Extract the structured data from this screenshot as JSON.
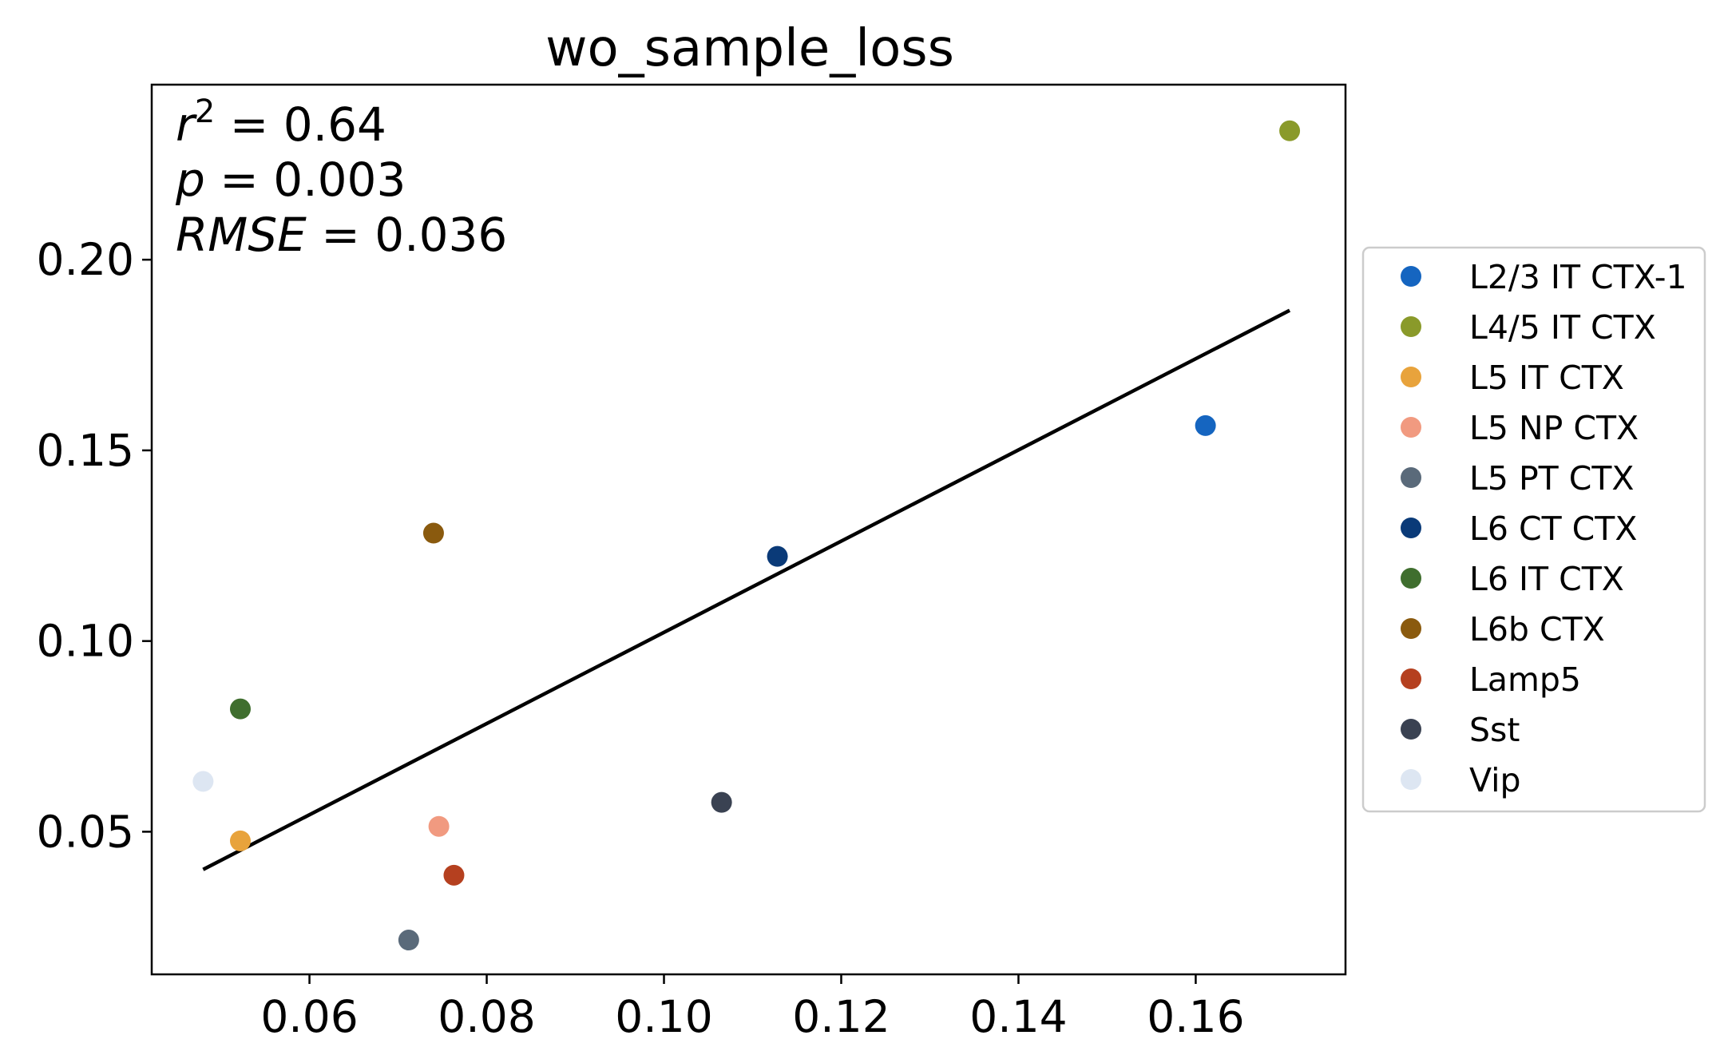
{
  "chart_data": {
    "type": "scatter",
    "title": "wo_sample_loss",
    "xlabel": "",
    "ylabel": "",
    "xlim": [
      0.0422,
      0.1769
    ],
    "ylim": [
      0.0126,
      0.2459
    ],
    "xticks": [
      0.06,
      0.08,
      0.1,
      0.12,
      0.14,
      0.16
    ],
    "xtick_labels": [
      "0.06",
      "0.08",
      "0.10",
      "0.12",
      "0.14",
      "0.16"
    ],
    "yticks": [
      0.05,
      0.1,
      0.15,
      0.2
    ],
    "ytick_labels": [
      "0.05",
      "0.10",
      "0.15",
      "0.20"
    ],
    "grid": false,
    "legend_position": "outside-right",
    "annotations": [
      {
        "symbol": "r",
        "superscript": "2",
        "equals": " = ",
        "value": "0.64"
      },
      {
        "symbol": "p",
        "superscript": "",
        "equals": " = ",
        "value": "0.003"
      },
      {
        "symbol": "RMSE",
        "superscript": "",
        "equals": " = ",
        "value": "0.036"
      }
    ],
    "fit_line": {
      "x": [
        0.048,
        0.1706
      ],
      "y": [
        0.0401,
        0.1867
      ],
      "color": "#000000"
    },
    "series": [
      {
        "name": "L2/3 IT CTX-1",
        "color": "#1565c0",
        "x": [
          0.1611
        ],
        "y": [
          0.1565
        ]
      },
      {
        "name": "L4/5 IT CTX",
        "color": "#8a9a2a",
        "x": [
          0.1706
        ],
        "y": [
          0.2338
        ]
      },
      {
        "name": "L5 IT CTX",
        "color": "#e8a33c",
        "x": [
          0.0522
        ],
        "y": [
          0.0476
        ]
      },
      {
        "name": "L5 NP CTX",
        "color": "#f19a80",
        "x": [
          0.0746
        ],
        "y": [
          0.0514
        ]
      },
      {
        "name": "L5 PT CTX",
        "color": "#5a6a7a",
        "x": [
          0.0712
        ],
        "y": [
          0.0216
        ]
      },
      {
        "name": "L6 CT CTX",
        "color": "#0a3a78",
        "x": [
          0.1128
        ],
        "y": [
          0.1222
        ]
      },
      {
        "name": "L6 IT CTX",
        "color": "#3f6e2e",
        "x": [
          0.0522
        ],
        "y": [
          0.0822
        ]
      },
      {
        "name": "L6b CTX",
        "color": "#8a5a0e",
        "x": [
          0.074
        ],
        "y": [
          0.1283
        ]
      },
      {
        "name": "Lamp5",
        "color": "#b5401f",
        "x": [
          0.0763
        ],
        "y": [
          0.0386
        ]
      },
      {
        "name": "Sst",
        "color": "#3a4252",
        "x": [
          0.1065
        ],
        "y": [
          0.0577
        ]
      },
      {
        "name": "Vip",
        "color": "#dde6f2",
        "x": [
          0.048
        ],
        "y": [
          0.0632
        ]
      }
    ]
  }
}
